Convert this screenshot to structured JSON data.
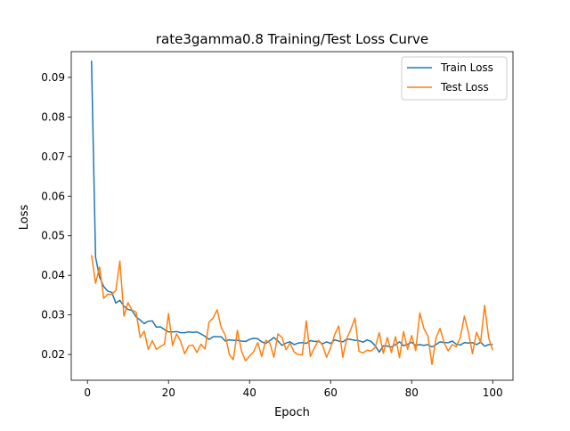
{
  "chart_data": {
    "type": "line",
    "title": "rate3gamma0.8 Training/Test Loss Curve",
    "xlabel": "Epoch",
    "ylabel": "Loss",
    "xlim": [
      -4,
      105
    ],
    "ylim": [
      0.0135,
      0.0965
    ],
    "xticks": [
      0,
      20,
      40,
      60,
      80,
      100
    ],
    "yticks": [
      0.02,
      0.03,
      0.04,
      0.05,
      0.06,
      0.07,
      0.08,
      0.09
    ],
    "grid": false,
    "legend_position": "top-right",
    "x": [
      1,
      2,
      3,
      4,
      5,
      6,
      7,
      8,
      9,
      10,
      11,
      12,
      13,
      14,
      15,
      16,
      17,
      18,
      19,
      20,
      21,
      22,
      23,
      24,
      25,
      26,
      27,
      28,
      29,
      30,
      31,
      32,
      33,
      34,
      35,
      36,
      37,
      38,
      39,
      40,
      41,
      42,
      43,
      44,
      45,
      46,
      47,
      48,
      49,
      50,
      51,
      52,
      53,
      54,
      55,
      56,
      57,
      58,
      59,
      60,
      61,
      62,
      63,
      64,
      65,
      66,
      67,
      68,
      69,
      70,
      71,
      72,
      73,
      74,
      75,
      76,
      77,
      78,
      79,
      80,
      81,
      82,
      83,
      84,
      85,
      86,
      87,
      88,
      89,
      90,
      91,
      92,
      93,
      94,
      95,
      96,
      97,
      98,
      99,
      100
    ],
    "series": [
      {
        "name": "Train Loss",
        "color": "#1f77b4",
        "values": [
          0.0942,
          0.0446,
          0.0395,
          0.0372,
          0.036,
          0.0357,
          0.033,
          0.0337,
          0.0322,
          0.0314,
          0.0311,
          0.0295,
          0.0287,
          0.0278,
          0.0284,
          0.0285,
          0.0269,
          0.027,
          0.0263,
          0.0257,
          0.0257,
          0.0258,
          0.0255,
          0.0255,
          0.0257,
          0.0256,
          0.0257,
          0.0252,
          0.0246,
          0.0238,
          0.0245,
          0.0245,
          0.0245,
          0.0234,
          0.0237,
          0.0236,
          0.0236,
          0.0234,
          0.0233,
          0.0238,
          0.0241,
          0.024,
          0.0232,
          0.0228,
          0.0235,
          0.0243,
          0.0234,
          0.0223,
          0.0229,
          0.0232,
          0.0225,
          0.0229,
          0.023,
          0.0228,
          0.0235,
          0.0233,
          0.0233,
          0.0227,
          0.0232,
          0.0228,
          0.0237,
          0.0234,
          0.0232,
          0.0239,
          0.0238,
          0.0236,
          0.0235,
          0.0231,
          0.0237,
          0.0233,
          0.0222,
          0.0206,
          0.0222,
          0.0221,
          0.0219,
          0.0225,
          0.0232,
          0.0222,
          0.0226,
          0.0231,
          0.0223,
          0.0225,
          0.0223,
          0.0225,
          0.0219,
          0.0225,
          0.0232,
          0.023,
          0.023,
          0.0234,
          0.0226,
          0.0224,
          0.023,
          0.0229,
          0.023,
          0.0225,
          0.0231,
          0.0221,
          0.0225,
          0.0225
        ]
      },
      {
        "name": "Test Loss",
        "color": "#ff7f0e",
        "values": [
          0.0451,
          0.038,
          0.0421,
          0.0342,
          0.0352,
          0.0352,
          0.0362,
          0.0436,
          0.0297,
          0.0331,
          0.0312,
          0.0307,
          0.0243,
          0.0259,
          0.0213,
          0.0235,
          0.0213,
          0.022,
          0.0226,
          0.0303,
          0.0223,
          0.0252,
          0.0233,
          0.0202,
          0.0222,
          0.0224,
          0.0205,
          0.0226,
          0.0214,
          0.0282,
          0.0292,
          0.0313,
          0.0268,
          0.0249,
          0.02,
          0.0187,
          0.0261,
          0.0209,
          0.0184,
          0.0196,
          0.0207,
          0.023,
          0.0195,
          0.0236,
          0.0229,
          0.0193,
          0.0252,
          0.0243,
          0.0212,
          0.0229,
          0.0206,
          0.02,
          0.0199,
          0.0285,
          0.0195,
          0.0217,
          0.0236,
          0.0224,
          0.0193,
          0.0217,
          0.025,
          0.0272,
          0.0193,
          0.0241,
          0.0264,
          0.0292,
          0.0208,
          0.0204,
          0.0211,
          0.0209,
          0.0218,
          0.0255,
          0.0203,
          0.0243,
          0.0205,
          0.0245,
          0.0192,
          0.0258,
          0.0213,
          0.0248,
          0.021,
          0.0305,
          0.0266,
          0.0247,
          0.0175,
          0.0242,
          0.0266,
          0.023,
          0.0209,
          0.0225,
          0.022,
          0.0243,
          0.0297,
          0.0256,
          0.0202,
          0.0256,
          0.0231,
          0.0324,
          0.0242,
          0.0211
        ]
      }
    ]
  }
}
